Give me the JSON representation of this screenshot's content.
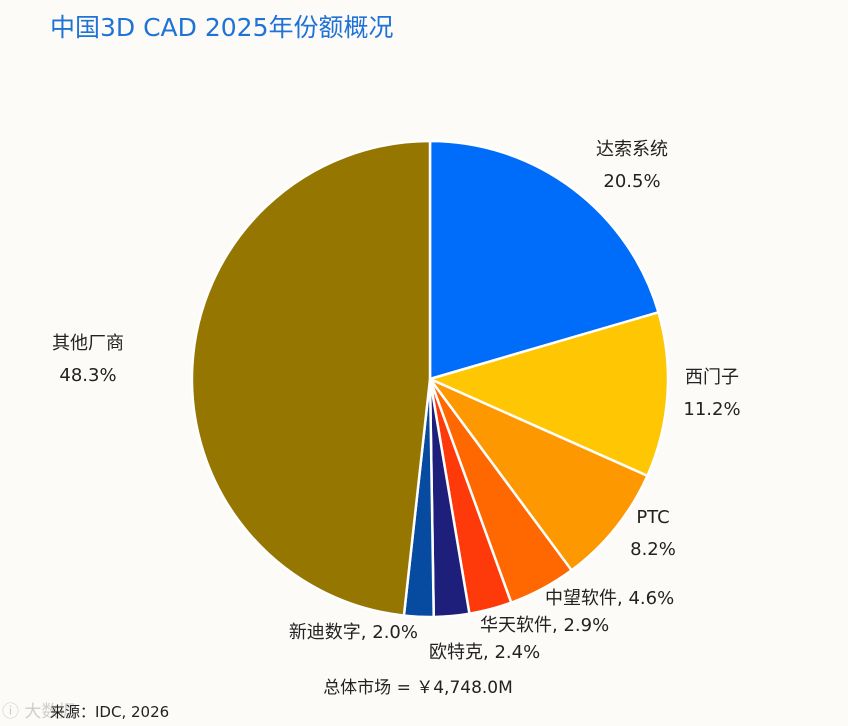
{
  "title": "中国3D CAD 2025年份额概况",
  "source": "来源：IDC, 2026",
  "watermark": "ⓘ 大数据",
  "chart_data": {
    "type": "pie",
    "title": "中国3D CAD 2025年份额概况",
    "total_label": "总体市场 = ￥4,748.0M",
    "start_angle": "12 o'clock",
    "direction": "clockwise",
    "slices": [
      {
        "name": "达索系统",
        "value": 20.5,
        "label": "20.5%",
        "color": "#006cfa"
      },
      {
        "name": "西门子",
        "value": 11.2,
        "label": "11.2%",
        "color": "#ffc603"
      },
      {
        "name": "PTC",
        "value": 8.2,
        "label": "8.2%",
        "color": "#fe9800"
      },
      {
        "name": "中望软件",
        "value": 4.6,
        "label": "4.6%",
        "color": "#ff6800"
      },
      {
        "name": "华天软件",
        "value": 2.9,
        "label": "2.9%",
        "color": "#ff3a0a"
      },
      {
        "name": "欧特克",
        "value": 2.4,
        "label": "2.4%",
        "color": "#1e1f7a"
      },
      {
        "name": "新迪数字",
        "value": 2.0,
        "label": "2.0%",
        "color": "#074ba1"
      },
      {
        "name": "其他厂商",
        "value": 48.3,
        "label": "48.3%",
        "color": "#957600"
      }
    ]
  }
}
